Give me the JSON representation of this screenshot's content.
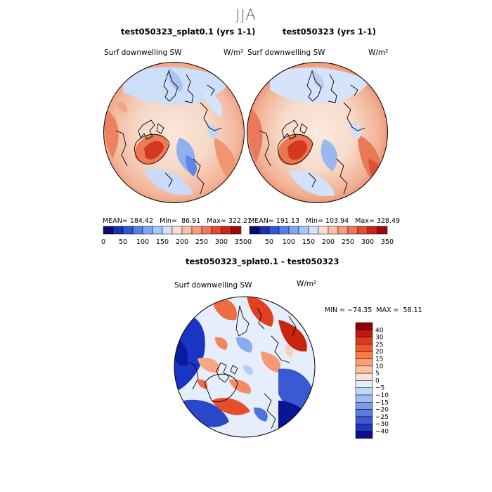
{
  "season": "JJA",
  "panels": [
    {
      "title": "test050323_splat0.1 (yrs 1-1)",
      "variable": "Surf downwelling SW",
      "units": "W/m²",
      "stats": "MEAN= 184.42   Min=  86.91   Max= 322.21"
    },
    {
      "title": "test050323 (yrs 1-1)",
      "variable": "Surf downwelling SW",
      "units": "W/m²",
      "stats": "MEAN= 191.13   Min= 103.94   Max= 328.49"
    }
  ],
  "diff": {
    "title": "test050323_splat0.1 - test050323",
    "variable": "Surf downwelling SW",
    "units": "W/m²",
    "minmax": "MIN = −74.35  MAX =  58.11"
  },
  "chart_data": [
    {
      "type": "heatmap",
      "title": "test050323_splat0.1 (yrs 1-1)",
      "variable": "Surf downwelling SW",
      "units": "W/m2",
      "projection": "north polar stereographic",
      "mean": 184.42,
      "min": 86.91,
      "max": 322.21,
      "colorbar": {
        "orientation": "horizontal",
        "tick_labels": [
          "0",
          "50",
          "100",
          "150",
          "200",
          "250",
          "300",
          "350"
        ],
        "levels": [
          0,
          25,
          50,
          75,
          100,
          125,
          150,
          175,
          200,
          225,
          250,
          275,
          300,
          325,
          350
        ],
        "colors": [
          "#0a0a6e",
          "#1a2fb0",
          "#2f55d8",
          "#5580ea",
          "#80a6f2",
          "#aac6f7",
          "#d2e2fb",
          "#fbe1d4",
          "#f8c0a6",
          "#f49e7e",
          "#ee775a",
          "#e24a34",
          "#c8251a",
          "#9c0c0c"
        ]
      }
    },
    {
      "type": "heatmap",
      "title": "test050323 (yrs 1-1)",
      "variable": "Surf downwelling SW",
      "units": "W/m2",
      "projection": "north polar stereographic",
      "mean": 191.13,
      "min": 103.94,
      "max": 328.49,
      "colorbar": {
        "orientation": "horizontal",
        "tick_labels": [
          "0",
          "50",
          "100",
          "150",
          "200",
          "250",
          "300",
          "350"
        ],
        "levels": [
          0,
          25,
          50,
          75,
          100,
          125,
          150,
          175,
          200,
          225,
          250,
          275,
          300,
          325,
          350
        ],
        "colors": [
          "#0a0a6e",
          "#1a2fb0",
          "#2f55d8",
          "#5580ea",
          "#80a6f2",
          "#aac6f7",
          "#d2e2fb",
          "#fbe1d4",
          "#f8c0a6",
          "#f49e7e",
          "#ee775a",
          "#e24a34",
          "#c8251a",
          "#9c0c0c"
        ]
      }
    },
    {
      "type": "heatmap",
      "title": "test050323_splat0.1 - test050323",
      "variable": "Surf downwelling SW",
      "units": "W/m2",
      "projection": "north polar stereographic",
      "min": -74.35,
      "max": 58.11,
      "colorbar": {
        "orientation": "vertical",
        "tick_labels": [
          "40",
          "30",
          "25",
          "20",
          "15",
          "10",
          "5",
          "0",
          "−5",
          "−10",
          "−15",
          "−20",
          "−25",
          "−30",
          "−40"
        ],
        "colors": [
          "#8b0000",
          "#c0180f",
          "#e03a1c",
          "#f0582c",
          "#f67b48",
          "#f99f73",
          "#fbc3a2",
          "#fde3d3",
          "#e2edfb",
          "#c2d6f6",
          "#9fbcf0",
          "#7b9de8",
          "#587de0",
          "#3a5bd3",
          "#1f37be",
          "#0a0f8a"
        ]
      }
    }
  ]
}
